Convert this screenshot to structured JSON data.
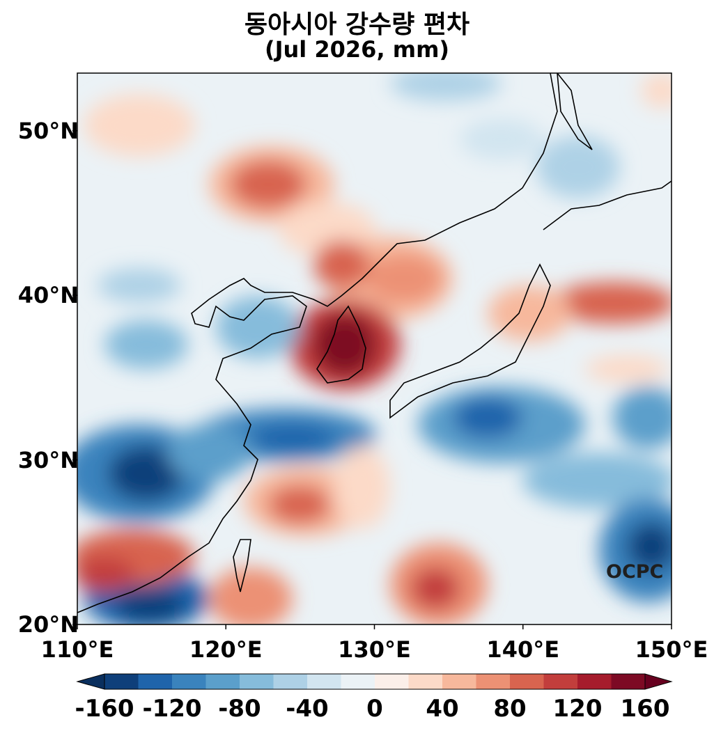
{
  "title": "동아시아 강수량 편차",
  "subtitle": "(Jul 2026, mm)",
  "credit": "OCPC",
  "lat_ticks": [
    {
      "value": 50,
      "label": "50°N"
    },
    {
      "value": 40,
      "label": "40°N"
    },
    {
      "value": 30,
      "label": "30°N"
    },
    {
      "value": 20,
      "label": "20°N"
    }
  ],
  "lon_ticks": [
    {
      "value": 110,
      "label": "110°E"
    },
    {
      "value": 120,
      "label": "120°E"
    },
    {
      "value": 130,
      "label": "130°E"
    },
    {
      "value": 140,
      "label": "140°E"
    },
    {
      "value": 150,
      "label": "150°E"
    }
  ],
  "extent": {
    "lon": [
      110,
      150
    ],
    "lat": [
      20,
      53.5
    ]
  },
  "colorbar": {
    "ticks": [
      {
        "value": -160,
        "label": "-160"
      },
      {
        "value": -120,
        "label": "-120"
      },
      {
        "value": -80,
        "label": "-80"
      },
      {
        "value": -40,
        "label": "-40"
      },
      {
        "value": 0,
        "label": "0"
      },
      {
        "value": 40,
        "label": "40"
      },
      {
        "value": 80,
        "label": "80"
      },
      {
        "value": 120,
        "label": "120"
      },
      {
        "value": 160,
        "label": "160"
      }
    ],
    "levels": [
      -160,
      -140,
      -120,
      -100,
      -80,
      -60,
      -40,
      -20,
      0,
      20,
      40,
      60,
      80,
      100,
      120,
      140,
      160
    ],
    "colors": [
      "#0e3f7a",
      "#1f64ab",
      "#3a83bd",
      "#5b9fcb",
      "#86bcdb",
      "#aed1e6",
      "#d2e5f0",
      "#ebf2f6",
      "#fbefe9",
      "#fcdac8",
      "#f7b89c",
      "#ec9174",
      "#d8644f",
      "#c23e3c",
      "#a61c2c",
      "#7d0a24"
    ],
    "under_color": "#0a2f5e",
    "over_color": "#67001f"
  }
}
